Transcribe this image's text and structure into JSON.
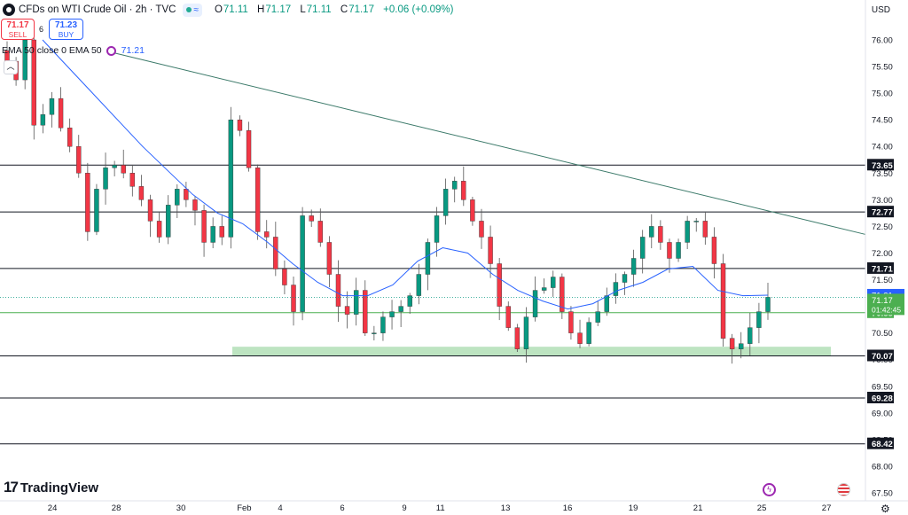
{
  "header": {
    "title": "CFDs on WTI Crude Oil · 2h · TVC",
    "ohlc": {
      "o_label": "O",
      "o": "71.11",
      "h_label": "H",
      "h": "71.17",
      "l_label": "L",
      "l": "71.11",
      "c_label": "C",
      "c": "71.17",
      "change": "+0.06 (+0.09%)"
    }
  },
  "trade": {
    "sell_price": "71.17",
    "sell_label": "SELL",
    "spread": "6",
    "buy_price": "71.23",
    "buy_label": "BUY"
  },
  "ema_legend": {
    "label": "EMA 50 close 0 EMA 50",
    "value": "71.21"
  },
  "currency": "USD",
  "brand": "TradingView",
  "colors": {
    "up": "#089981",
    "down": "#f23645",
    "ema": "#2962ff",
    "trend": "#3c7a6a",
    "support_zone": "#b2dfb6",
    "price_label": "#4caf50"
  },
  "chart_data": {
    "type": "candlestick",
    "symbol": "CFDs on WTI Crude Oil",
    "interval": "2h",
    "ylim": [
      67.5,
      76.25
    ],
    "y_ticks": [
      "67.50",
      "68.00",
      "68.50",
      "69.00",
      "69.50",
      "70.00",
      "70.50",
      "71.00",
      "71.50",
      "72.00",
      "72.50",
      "73.00",
      "73.50",
      "74.00",
      "74.50",
      "75.00",
      "75.50",
      "76.00"
    ],
    "x_ticks": [
      "24",
      "28",
      "30",
      "Feb",
      "4",
      "6",
      "9",
      "11",
      "13",
      "16",
      "19",
      "21",
      "25",
      "27"
    ],
    "close_path": [
      75.6,
      75.25,
      76.0,
      74.4,
      74.6,
      74.9,
      74.35,
      74.0,
      73.5,
      72.4,
      73.2,
      73.6,
      73.65,
      73.5,
      73.25,
      73.0,
      72.6,
      72.3,
      72.9,
      73.2,
      73.0,
      72.8,
      72.2,
      72.5,
      72.3,
      74.5,
      74.3,
      73.6,
      72.4,
      72.3,
      71.7,
      71.4,
      70.9,
      72.7,
      72.6,
      72.2,
      71.6,
      71.0,
      70.85,
      71.3,
      70.5,
      70.5,
      70.8,
      70.9,
      71.0,
      71.2,
      71.6,
      72.2,
      72.7,
      73.2,
      73.35,
      73.0,
      72.6,
      72.3,
      71.8,
      71.0,
      70.6,
      70.2,
      70.8,
      71.3,
      71.35,
      71.55,
      70.9,
      70.5,
      70.3,
      70.7,
      70.9,
      71.2,
      71.45,
      71.6,
      71.9,
      72.3,
      72.5,
      72.2,
      71.9,
      72.2,
      72.6,
      72.6,
      72.3,
      71.8,
      70.4,
      70.2,
      70.3,
      70.6,
      70.9,
      71.17
    ],
    "closes_sample_note": "",
    "ema50_points": [
      76.0,
      75.5,
      75.0,
      74.5,
      74.0,
      73.55,
      73.1,
      72.75,
      72.55,
      72.2,
      71.8,
      71.45,
      71.2,
      71.2,
      71.4,
      71.85,
      72.1,
      72.0,
      71.6,
      71.3,
      71.1,
      70.95,
      71.05,
      71.3,
      71.45,
      71.7,
      71.75,
      71.3,
      71.2,
      71.21
    ],
    "levels": [
      {
        "price": 73.65,
        "label": "73.65"
      },
      {
        "price": 72.77,
        "label": "72.77"
      },
      {
        "price": 71.71,
        "label": "71.71"
      },
      {
        "price": 70.88,
        "label": "70.88"
      },
      {
        "price": 70.07,
        "label": "70.07"
      },
      {
        "price": 69.28,
        "label": "69.28"
      },
      {
        "price": 68.42,
        "label": "68.42"
      }
    ],
    "trendline": {
      "from_price": 75.75,
      "to_price": 72.35
    },
    "support_zone": {
      "low": 70.1,
      "high": 70.25
    },
    "last_price": {
      "price": "71.17",
      "countdown": "01:42:45"
    },
    "ema_last": {
      "price": 71.21,
      "label": "71.21"
    },
    "green_level_label": "70.88"
  }
}
